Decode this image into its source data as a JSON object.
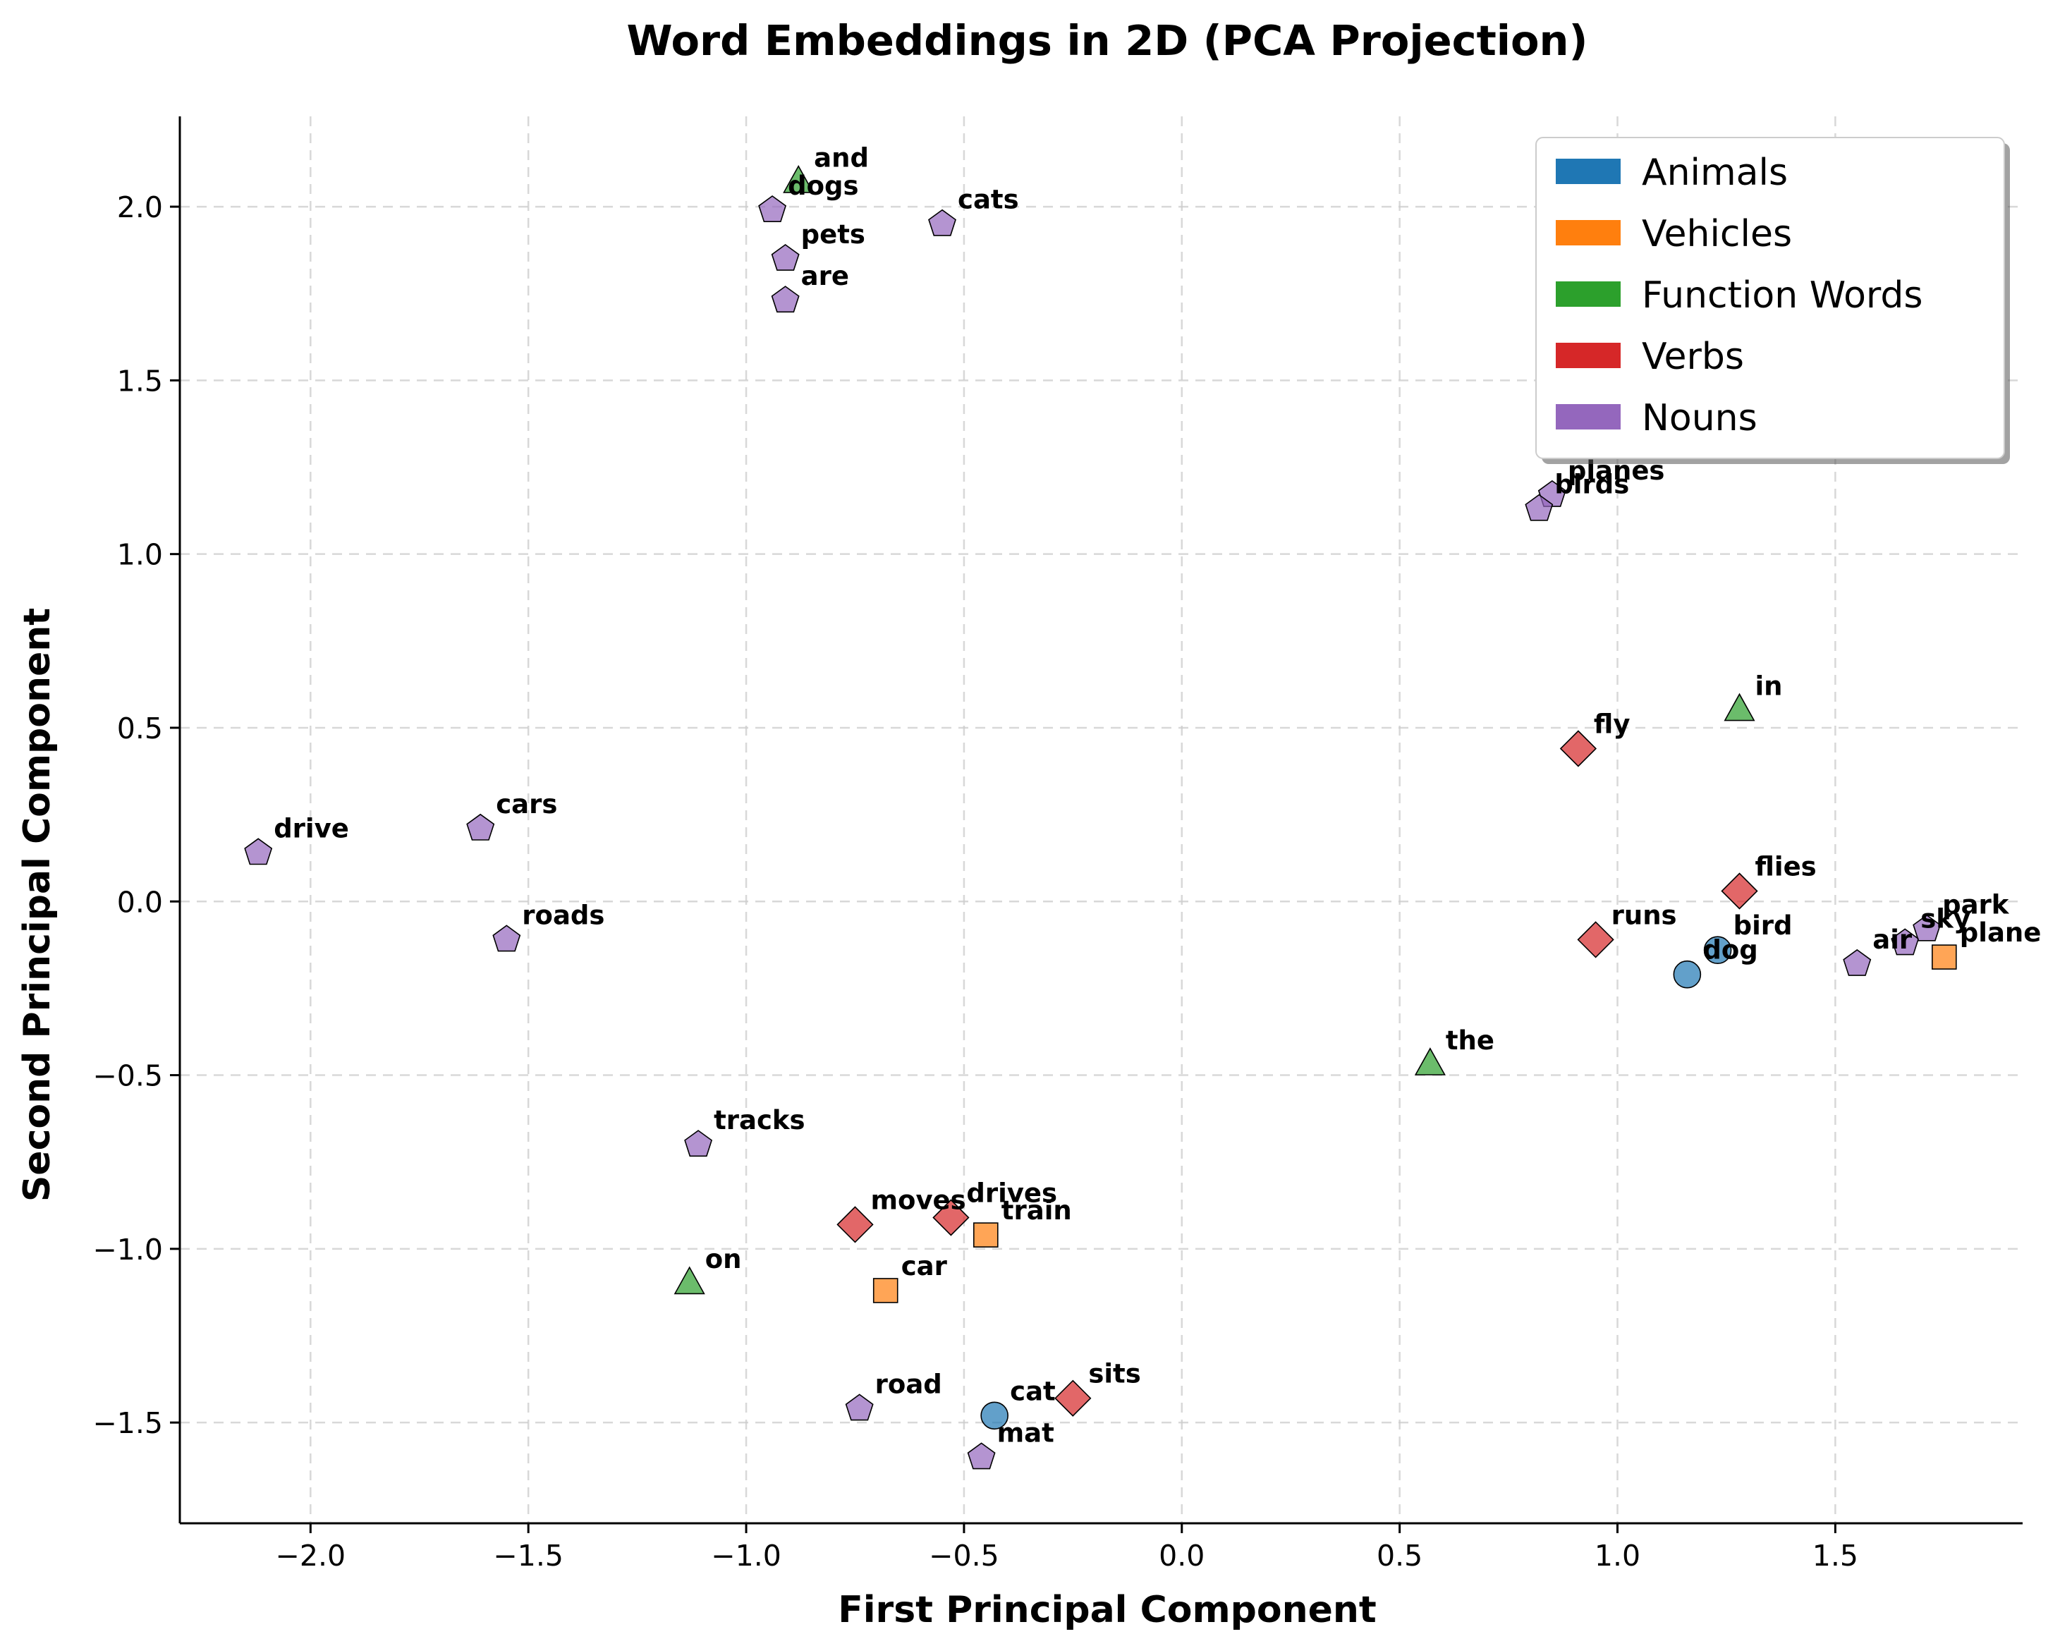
{
  "chart_data": {
    "type": "scatter",
    "title": "Word Embeddings in 2D (PCA Projection)",
    "xlabel": "First Principal Component",
    "ylabel": "Second Principal Component",
    "xlim": [
      -2.3,
      1.93
    ],
    "ylim": [
      -1.79,
      2.26
    ],
    "xticks": [
      -2.0,
      -1.5,
      -1.0,
      -0.5,
      0.0,
      0.5,
      1.0,
      1.5
    ],
    "xtick_labels": [
      "−2.0",
      "−1.5",
      "−1.0",
      "−0.5",
      "0.0",
      "0.5",
      "1.0",
      "1.5"
    ],
    "yticks": [
      -1.5,
      -1.0,
      -0.5,
      0.0,
      0.5,
      1.0,
      1.5,
      2.0
    ],
    "ytick_labels": [
      "−1.5",
      "−1.0",
      "−0.5",
      "0.0",
      "0.5",
      "1.0",
      "1.5",
      "2.0"
    ],
    "grid": true,
    "legend_position": "top-right",
    "categories": [
      {
        "name": "Animals",
        "color": "#1f77b4",
        "marker": "circle"
      },
      {
        "name": "Vehicles",
        "color": "#ff7f0e",
        "marker": "square"
      },
      {
        "name": "Function Words",
        "color": "#2ca02c",
        "marker": "triangle"
      },
      {
        "name": "Verbs",
        "color": "#d62728",
        "marker": "diamond"
      },
      {
        "name": "Nouns",
        "color": "#9467bd",
        "marker": "pentagon"
      }
    ],
    "points": [
      {
        "word": "dog",
        "x": 1.16,
        "y": -0.21,
        "category": "Animals"
      },
      {
        "word": "bird",
        "x": 1.23,
        "y": -0.14,
        "category": "Animals"
      },
      {
        "word": "cat",
        "x": -0.43,
        "y": -1.48,
        "category": "Animals"
      },
      {
        "word": "plane",
        "x": 1.75,
        "y": -0.16,
        "category": "Vehicles"
      },
      {
        "word": "train",
        "x": -0.45,
        "y": -0.96,
        "category": "Vehicles"
      },
      {
        "word": "car",
        "x": -0.68,
        "y": -1.12,
        "category": "Vehicles"
      },
      {
        "word": "and",
        "x": -0.88,
        "y": 2.07,
        "category": "Function Words"
      },
      {
        "word": "in",
        "x": 1.28,
        "y": 0.55,
        "category": "Function Words"
      },
      {
        "word": "the",
        "x": 0.57,
        "y": -0.47,
        "category": "Function Words"
      },
      {
        "word": "on",
        "x": -1.13,
        "y": -1.1,
        "category": "Function Words"
      },
      {
        "word": "fly",
        "x": 0.91,
        "y": 0.44,
        "category": "Verbs"
      },
      {
        "word": "flies",
        "x": 1.28,
        "y": 0.03,
        "category": "Verbs"
      },
      {
        "word": "runs",
        "x": 0.95,
        "y": -0.11,
        "category": "Verbs"
      },
      {
        "word": "moves",
        "x": -0.75,
        "y": -0.93,
        "category": "Verbs"
      },
      {
        "word": "drives",
        "x": -0.53,
        "y": -0.91,
        "category": "Verbs"
      },
      {
        "word": "sits",
        "x": -0.25,
        "y": -1.43,
        "category": "Verbs"
      },
      {
        "word": "dogs",
        "x": -0.94,
        "y": 1.99,
        "category": "Nouns"
      },
      {
        "word": "cats",
        "x": -0.55,
        "y": 1.95,
        "category": "Nouns"
      },
      {
        "word": "pets",
        "x": -0.91,
        "y": 1.85,
        "category": "Nouns"
      },
      {
        "word": "are",
        "x": -0.91,
        "y": 1.73,
        "category": "Nouns"
      },
      {
        "word": "planes",
        "x": 0.85,
        "y": 1.17,
        "category": "Nouns"
      },
      {
        "word": "birds",
        "x": 0.82,
        "y": 1.13,
        "category": "Nouns"
      },
      {
        "word": "drive",
        "x": -2.12,
        "y": 0.14,
        "category": "Nouns"
      },
      {
        "word": "cars",
        "x": -1.61,
        "y": 0.21,
        "category": "Nouns"
      },
      {
        "word": "roads",
        "x": -1.55,
        "y": -0.11,
        "category": "Nouns"
      },
      {
        "word": "air",
        "x": 1.55,
        "y": -0.18,
        "category": "Nouns"
      },
      {
        "word": "sky",
        "x": 1.66,
        "y": -0.12,
        "category": "Nouns"
      },
      {
        "word": "park",
        "x": 1.71,
        "y": -0.08,
        "category": "Nouns"
      },
      {
        "word": "tracks",
        "x": -1.11,
        "y": -0.7,
        "category": "Nouns"
      },
      {
        "word": "road",
        "x": -0.74,
        "y": -1.46,
        "category": "Nouns"
      },
      {
        "word": "mat",
        "x": -0.46,
        "y": -1.6,
        "category": "Nouns"
      }
    ]
  }
}
